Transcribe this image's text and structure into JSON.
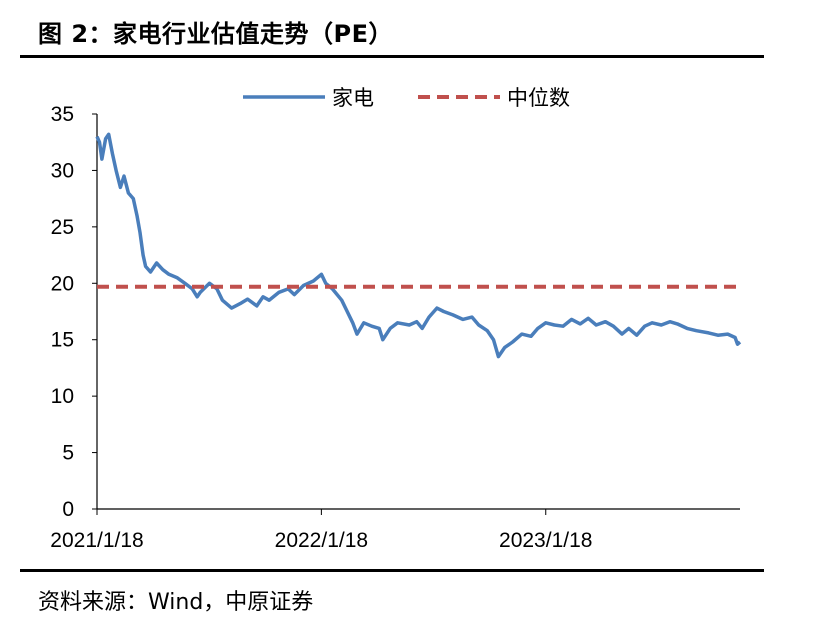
{
  "figure": {
    "title": "图 2：家电行业估值走势（PE）",
    "source": "资料来源：Wind，中原证券"
  },
  "chart_data": {
    "type": "line",
    "title": "",
    "xlabel": "",
    "ylabel": "",
    "ylim": [
      0,
      35
    ],
    "y_ticks": [
      0,
      5,
      10,
      15,
      20,
      25,
      30,
      35
    ],
    "x_tick_labels": [
      "2021/1/18",
      "2022/1/18",
      "2023/1/18"
    ],
    "x_range": [
      "2021-01-18",
      "2023-11-30"
    ],
    "grid": false,
    "legend_position": "top",
    "series": [
      {
        "name": "家电",
        "color": "#4a7ebb",
        "style": "solid",
        "points": [
          [
            "2021-01-18",
            33.0
          ],
          [
            "2021-01-22",
            32.5
          ],
          [
            "2021-01-26",
            31.0
          ],
          [
            "2021-02-01",
            32.8
          ],
          [
            "2021-02-06",
            33.2
          ],
          [
            "2021-02-12",
            31.5
          ],
          [
            "2021-02-18",
            30.0
          ],
          [
            "2021-02-25",
            28.5
          ],
          [
            "2021-03-03",
            29.5
          ],
          [
            "2021-03-10",
            28.0
          ],
          [
            "2021-03-18",
            27.5
          ],
          [
            "2021-03-24",
            26.0
          ],
          [
            "2021-03-29",
            24.5
          ],
          [
            "2021-04-03",
            22.5
          ],
          [
            "2021-04-07",
            21.5
          ],
          [
            "2021-04-15",
            21.0
          ],
          [
            "2021-04-25",
            21.8
          ],
          [
            "2021-05-05",
            21.2
          ],
          [
            "2021-05-15",
            20.8
          ],
          [
            "2021-05-28",
            20.5
          ],
          [
            "2021-06-10",
            20.0
          ],
          [
            "2021-06-22",
            19.5
          ],
          [
            "2021-06-30",
            18.8
          ],
          [
            "2021-07-05",
            19.2
          ],
          [
            "2021-07-20",
            20.0
          ],
          [
            "2021-08-01",
            19.5
          ],
          [
            "2021-08-10",
            18.5
          ],
          [
            "2021-08-25",
            17.8
          ],
          [
            "2021-09-08",
            18.2
          ],
          [
            "2021-09-20",
            18.6
          ],
          [
            "2021-10-05",
            18.0
          ],
          [
            "2021-10-15",
            18.8
          ],
          [
            "2021-10-25",
            18.5
          ],
          [
            "2021-11-10",
            19.2
          ],
          [
            "2021-11-25",
            19.5
          ],
          [
            "2021-12-05",
            19.0
          ],
          [
            "2021-12-20",
            19.8
          ],
          [
            "2022-01-05",
            20.2
          ],
          [
            "2022-01-18",
            20.8
          ],
          [
            "2022-01-25",
            20.0
          ],
          [
            "2022-02-05",
            19.5
          ],
          [
            "2022-02-20",
            18.5
          ],
          [
            "2022-03-01",
            17.5
          ],
          [
            "2022-03-10",
            16.5
          ],
          [
            "2022-03-17",
            15.5
          ],
          [
            "2022-03-28",
            16.5
          ],
          [
            "2022-04-10",
            16.2
          ],
          [
            "2022-04-22",
            16.0
          ],
          [
            "2022-04-28",
            15.0
          ],
          [
            "2022-05-10",
            16.0
          ],
          [
            "2022-05-22",
            16.5
          ],
          [
            "2022-06-10",
            16.3
          ],
          [
            "2022-06-22",
            16.6
          ],
          [
            "2022-07-01",
            16.0
          ],
          [
            "2022-07-12",
            17.0
          ],
          [
            "2022-07-25",
            17.8
          ],
          [
            "2022-08-05",
            17.5
          ],
          [
            "2022-08-20",
            17.2
          ],
          [
            "2022-09-05",
            16.8
          ],
          [
            "2022-09-20",
            17.0
          ],
          [
            "2022-10-01",
            16.3
          ],
          [
            "2022-10-15",
            15.8
          ],
          [
            "2022-10-25",
            15.0
          ],
          [
            "2022-11-02",
            13.5
          ],
          [
            "2022-11-12",
            14.3
          ],
          [
            "2022-11-25",
            14.8
          ],
          [
            "2022-12-10",
            15.5
          ],
          [
            "2022-12-25",
            15.3
          ],
          [
            "2023-01-05",
            16.0
          ],
          [
            "2023-01-18",
            16.5
          ],
          [
            "2023-02-01",
            16.3
          ],
          [
            "2023-02-15",
            16.2
          ],
          [
            "2023-03-01",
            16.8
          ],
          [
            "2023-03-15",
            16.4
          ],
          [
            "2023-03-28",
            16.9
          ],
          [
            "2023-04-10",
            16.3
          ],
          [
            "2023-04-25",
            16.6
          ],
          [
            "2023-05-08",
            16.2
          ],
          [
            "2023-05-22",
            15.5
          ],
          [
            "2023-06-02",
            16.0
          ],
          [
            "2023-06-15",
            15.4
          ],
          [
            "2023-06-28",
            16.2
          ],
          [
            "2023-07-10",
            16.5
          ],
          [
            "2023-07-25",
            16.3
          ],
          [
            "2023-08-08",
            16.6
          ],
          [
            "2023-08-20",
            16.4
          ],
          [
            "2023-09-05",
            16.0
          ],
          [
            "2023-09-20",
            15.8
          ],
          [
            "2023-10-10",
            15.6
          ],
          [
            "2023-10-25",
            15.4
          ],
          [
            "2023-11-10",
            15.5
          ],
          [
            "2023-11-22",
            15.2
          ],
          [
            "2023-11-26",
            14.6
          ],
          [
            "2023-11-30",
            14.8
          ]
        ]
      },
      {
        "name": "中位数",
        "color": "#c0504d",
        "style": "dashed",
        "points": [
          [
            "2021-01-18",
            19.7
          ],
          [
            "2023-11-30",
            19.7
          ]
        ]
      }
    ]
  }
}
